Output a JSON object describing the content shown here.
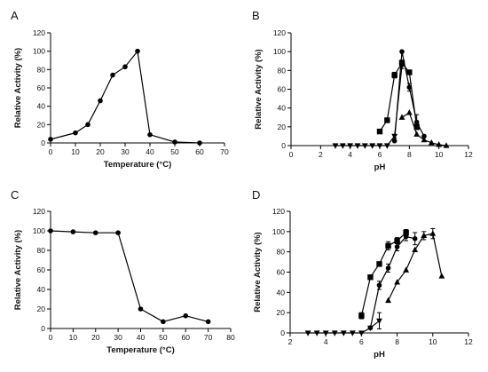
{
  "chart_data": [
    {
      "panel": "A",
      "type": "line",
      "xlabel": "Temperature (°C)",
      "ylabel": "Relative Activity (%)",
      "xlim": [
        0,
        70
      ],
      "ylim": [
        0,
        120
      ],
      "xticks": [
        0,
        10,
        20,
        30,
        40,
        50,
        60,
        70
      ],
      "yticks": [
        0,
        20,
        40,
        60,
        80,
        100,
        120
      ],
      "series": [
        {
          "marker": "circle",
          "x": [
            0,
            10,
            15,
            20,
            25,
            30,
            35,
            40,
            50,
            60
          ],
          "y": [
            4,
            11,
            20,
            46,
            74,
            83,
            100,
            9,
            1,
            0
          ]
        }
      ]
    },
    {
      "panel": "B",
      "type": "line",
      "xlabel": "pH",
      "ylabel": "Relative Activity (%)",
      "xlim": [
        0,
        12
      ],
      "ylim": [
        0,
        120
      ],
      "xticks": [
        0,
        2,
        4,
        6,
        8,
        10,
        12
      ],
      "yticks": [
        0,
        20,
        40,
        60,
        80,
        100,
        120
      ],
      "series": [
        {
          "marker": "square",
          "x": [
            6.0,
            6.5,
            7.0,
            7.5,
            8.0,
            8.5
          ],
          "y": [
            15,
            27,
            75,
            88,
            78,
            20
          ],
          "err": [
            0,
            0,
            3,
            3,
            2,
            3
          ]
        },
        {
          "marker": "circle",
          "x": [
            7.0,
            7.5,
            8.0,
            8.5,
            9.0
          ],
          "y": [
            5,
            100,
            62,
            25,
            10
          ],
          "err": [
            0,
            0,
            4,
            8,
            0
          ]
        },
        {
          "marker": "triangle-up",
          "x": [
            7.5,
            8.0,
            8.5,
            9.0,
            9.5,
            10.0,
            10.5
          ],
          "y": [
            30,
            35,
            12,
            6,
            3,
            1,
            0
          ]
        },
        {
          "marker": "triangle-down",
          "x": [
            3.0,
            3.5,
            4.0,
            4.5,
            5.0,
            5.5,
            6.0,
            6.5,
            7.0,
            7.5
          ],
          "y": [
            0,
            0,
            0,
            0,
            0,
            0,
            0,
            0,
            10,
            85
          ],
          "err": [
            0,
            0,
            0,
            0,
            0,
            0,
            0,
            0,
            2,
            3
          ]
        }
      ]
    },
    {
      "panel": "C",
      "type": "line",
      "xlabel": "Temperature (°C)",
      "ylabel": "Relative Activity (%)",
      "xlim": [
        0,
        80
      ],
      "ylim": [
        0,
        120
      ],
      "xticks": [
        0,
        10,
        20,
        30,
        40,
        50,
        60,
        70,
        80
      ],
      "yticks": [
        0,
        20,
        40,
        60,
        80,
        100,
        120
      ],
      "series": [
        {
          "marker": "circle",
          "x": [
            0,
            10,
            20,
            30,
            40,
            50,
            60,
            70
          ],
          "y": [
            100,
            99,
            98,
            98,
            20,
            7,
            13,
            7
          ]
        }
      ]
    },
    {
      "panel": "D",
      "type": "line",
      "xlabel": "pH",
      "ylabel": "Relative Activity (%)",
      "xlim": [
        2,
        12
      ],
      "ylim": [
        0,
        120
      ],
      "xticks": [
        2,
        4,
        6,
        8,
        10,
        12
      ],
      "yticks": [
        0,
        20,
        40,
        60,
        80,
        100,
        120
      ],
      "series": [
        {
          "marker": "square",
          "x": [
            6.0,
            6.5,
            7.0,
            7.5,
            8.0,
            8.5
          ],
          "y": [
            17,
            55,
            68,
            86,
            91,
            99
          ],
          "err": [
            3,
            2,
            2,
            4,
            3,
            3
          ]
        },
        {
          "marker": "circle",
          "x": [
            6.5,
            7.0,
            7.5,
            8.0,
            8.5,
            9.0
          ],
          "y": [
            5,
            47,
            64,
            85,
            95,
            93
          ],
          "err": [
            0,
            4,
            4,
            4,
            4,
            6
          ]
        },
        {
          "marker": "triangle-up",
          "x": [
            7.5,
            8.0,
            8.5,
            9.0,
            9.5,
            10.0,
            10.5
          ],
          "y": [
            32,
            50,
            62,
            82,
            96,
            98,
            56
          ],
          "err": [
            0,
            0,
            0,
            0,
            4,
            5,
            0
          ]
        },
        {
          "marker": "triangle-down",
          "x": [
            3.0,
            3.5,
            4.0,
            4.5,
            5.0,
            5.5,
            6.0,
            6.5,
            7.0
          ],
          "y": [
            0,
            0,
            0,
            0,
            0,
            0,
            0,
            5,
            12
          ],
          "err": [
            0,
            0,
            0,
            0,
            0,
            0,
            0,
            0,
            8
          ]
        }
      ]
    }
  ]
}
